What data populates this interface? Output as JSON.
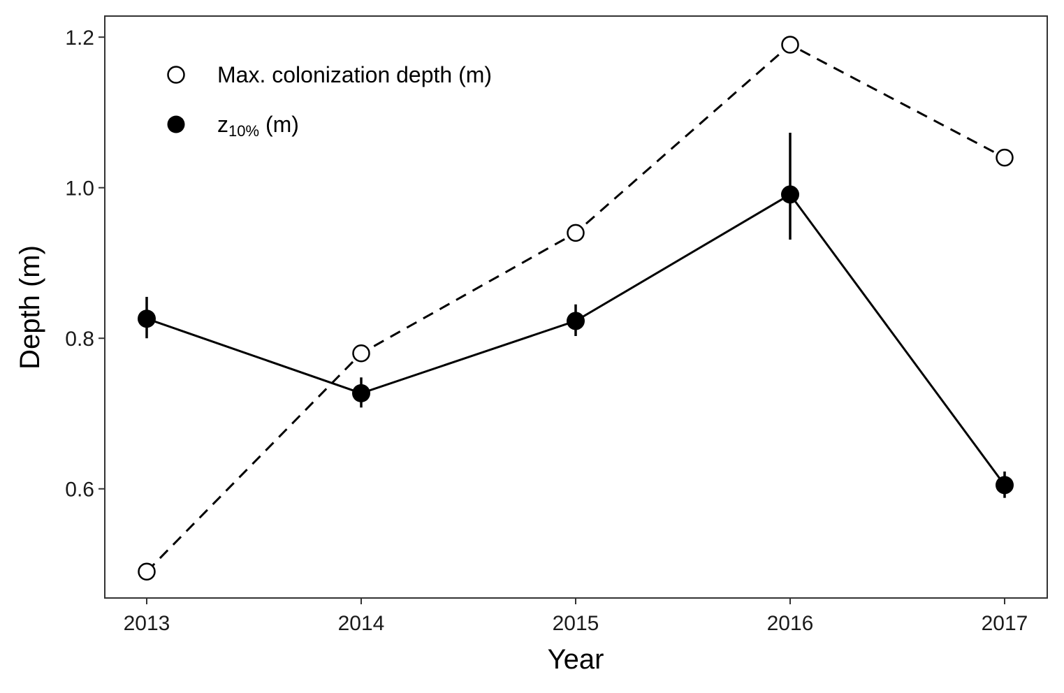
{
  "chart_data": {
    "type": "line",
    "title": "",
    "xlabel": "Year",
    "ylabel": "Depth (m)",
    "x": [
      "2013",
      "2014",
      "2015",
      "2016",
      "2017"
    ],
    "ylim": [
      0.455,
      1.228
    ],
    "yticks": [
      "0.6",
      "0.8",
      "1.0",
      "1.2"
    ],
    "ytick_values": [
      0.6,
      0.8,
      1.0,
      1.2
    ],
    "grid": false,
    "legend_position": "top-left (inside)",
    "series": [
      {
        "name": "Max. colonization depth (m)",
        "marker": "open-circle",
        "line_style": "dashed",
        "values": [
          0.49,
          0.78,
          0.94,
          1.19,
          1.04
        ]
      },
      {
        "name_main": "z",
        "name_sub": "10%",
        "name_suffix": " (m)",
        "marker": "filled-circle",
        "line_style": "solid",
        "values": [
          0.826,
          0.727,
          0.823,
          0.991,
          0.605
        ],
        "error_low": [
          0.8,
          0.708,
          0.803,
          0.931,
          0.588
        ],
        "error_high": [
          0.855,
          0.748,
          0.845,
          1.073,
          0.623
        ]
      }
    ],
    "colors": {
      "line": "#000000",
      "panel_border": "#333333",
      "open_marker_fill": "#ffffff"
    }
  }
}
